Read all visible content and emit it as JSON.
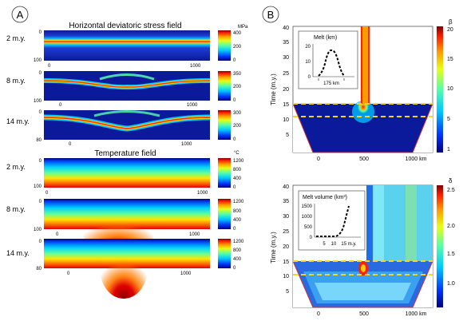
{
  "panel_a": {
    "label": "A",
    "stress": {
      "title": "Horizontal deviatoric stress field",
      "unit": "MPa",
      "rows": [
        {
          "time": "2 m.y.",
          "depth_ticks": [
            "0",
            "100"
          ],
          "x_ticks": [
            "0",
            "1000"
          ],
          "cbar_ticks": [
            "400",
            "200",
            "0"
          ]
        },
        {
          "time": "8 m.y.",
          "depth_ticks": [
            "0",
            "100"
          ],
          "x_ticks": [
            "0",
            "1000"
          ],
          "cbar_ticks": [
            "350",
            "200",
            "0"
          ]
        },
        {
          "time": "14 m.y.",
          "depth_ticks": [
            "0",
            "80"
          ],
          "x_ticks": [
            "0",
            "1000"
          ],
          "cbar_ticks": [
            "300",
            "200",
            "0"
          ]
        }
      ]
    },
    "temperature": {
      "title": "Temperature field",
      "unit": "°C",
      "rows": [
        {
          "time": "2 m.y.",
          "depth_ticks": [
            "0",
            "100"
          ],
          "x_ticks": [
            "0",
            "1000"
          ],
          "cbar_ticks": [
            "1200",
            "800",
            "400",
            "0"
          ]
        },
        {
          "time": "8 m.y.",
          "depth_ticks": [
            "0",
            "100"
          ],
          "x_ticks": [
            "0",
            "1000"
          ],
          "cbar_ticks": [
            "1200",
            "800",
            "400",
            "0"
          ]
        },
        {
          "time": "14 m.y.",
          "depth_ticks": [
            "0",
            "80"
          ],
          "x_ticks": [
            "0",
            "1000"
          ],
          "cbar_ticks": [
            "1200",
            "800",
            "400",
            "0"
          ]
        }
      ]
    }
  },
  "panel_b": {
    "label": "B",
    "top": {
      "ylabel": "Time (m.y.)",
      "y_ticks": [
        "40",
        "35",
        "30",
        "25",
        "20",
        "15",
        "10",
        "5"
      ],
      "x_ticks": [
        "0",
        "500",
        "1000 km"
      ],
      "cbar_title": "β",
      "cbar_ticks": [
        "20",
        "15",
        "10",
        "5",
        "1"
      ],
      "inset_title": "Melt (km)",
      "inset_y_ticks": [
        "20",
        "10",
        "0"
      ],
      "inset_x_label": "175 km"
    },
    "bottom": {
      "ylabel": "Time (m.y.)",
      "y_ticks": [
        "40",
        "35",
        "30",
        "25",
        "20",
        "15",
        "10",
        "5"
      ],
      "x_ticks": [
        "0",
        "500",
        "1000 km"
      ],
      "cbar_title": "δ",
      "cbar_ticks": [
        "2.5",
        "2.0",
        "1.5",
        "1.0"
      ],
      "inset_title": "Melt volume (km³)",
      "inset_y_ticks": [
        "1500",
        "1000",
        "500",
        "0"
      ],
      "inset_x_ticks": [
        "5",
        "10",
        "15 m.y."
      ]
    }
  },
  "colors": {
    "jet": [
      "#00007f",
      "#0033ff",
      "#00c8ff",
      "#55ffaa",
      "#e6ff14",
      "#ff9900",
      "#ff1e00",
      "#800000"
    ],
    "dashed_line": "#ffd21e",
    "frame": "#cc3333"
  }
}
